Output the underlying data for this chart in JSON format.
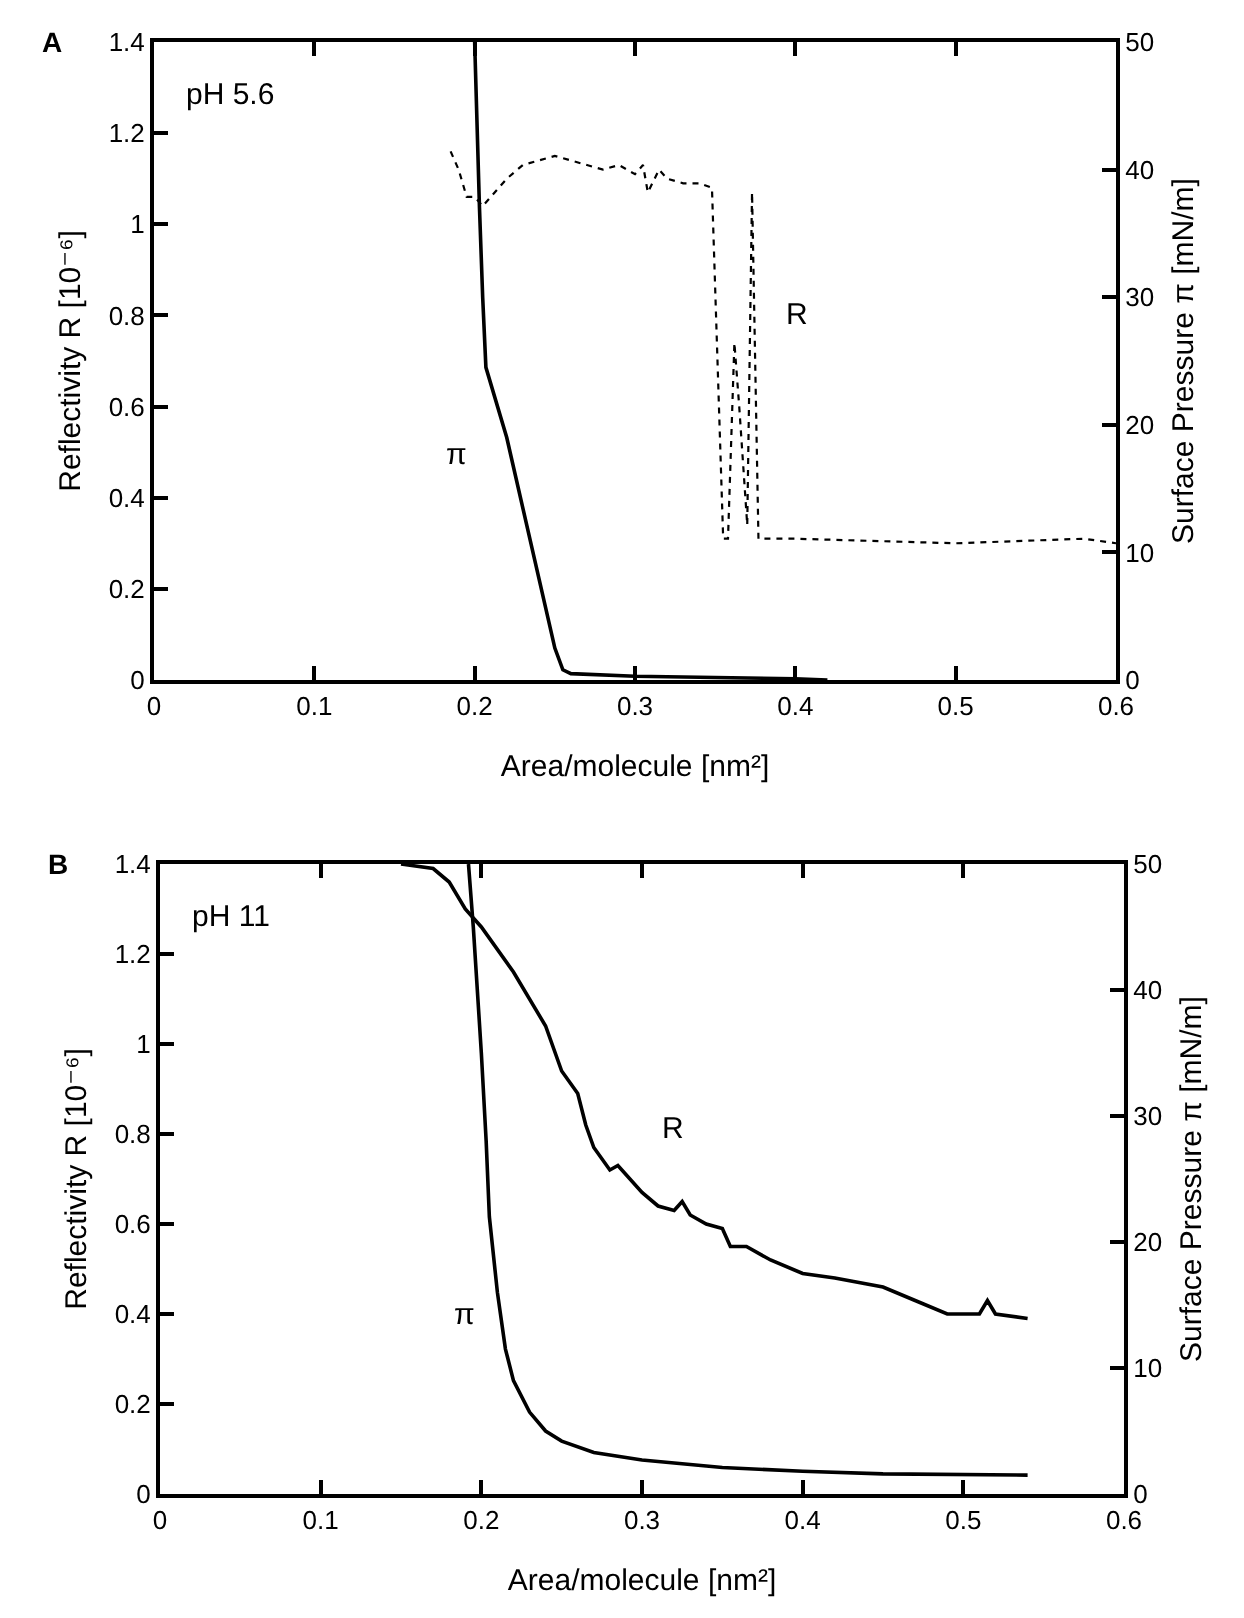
{
  "chart_data": [
    {
      "type": "line",
      "xlabel": "Area/molecule [nm²]",
      "ylabel": "Reflectivity R [10⁻⁶]",
      "y2label": "Surface Pressure π [mN/m]",
      "xlim": [
        0,
        0.6
      ],
      "xticks": [
        0,
        0.1,
        0.2,
        0.3,
        0.4,
        0.5,
        0.6
      ],
      "ylim": [
        0,
        1.4
      ],
      "yticks": [
        0,
        0.2,
        0.4,
        0.6,
        0.8,
        1,
        1.2,
        1.4
      ],
      "y2lim": [
        0,
        50
      ],
      "y2ticks": [
        0,
        10,
        20,
        30,
        40,
        50
      ],
      "grid": false,
      "legend": false,
      "marker": "none",
      "annotations": [
        "A",
        "pH 5.6"
      ],
      "series": [
        {
          "name": "R",
          "color": "#000000",
          "line_style": "dotted",
          "x": [
            0.185,
            0.19,
            0.195,
            0.2,
            0.205,
            0.21,
            0.22,
            0.23,
            0.24,
            0.25,
            0.26,
            0.27,
            0.28,
            0.29,
            0.3,
            0.305,
            0.308,
            0.315,
            0.32,
            0.33,
            0.34,
            0.348,
            0.355,
            0.358,
            0.362,
            0.365,
            0.37,
            0.373,
            0.377,
            0.4,
            0.5,
            0.58,
            0.6
          ],
          "values": [
            1.16,
            1.12,
            1.06,
            1.06,
            1.04,
            1.06,
            1.1,
            1.13,
            1.14,
            1.15,
            1.14,
            1.13,
            1.12,
            1.13,
            1.11,
            1.13,
            1.07,
            1.12,
            1.1,
            1.09,
            1.09,
            1.08,
            0.31,
            0.31,
            0.74,
            0.6,
            0.34,
            1.07,
            0.31,
            0.31,
            0.3,
            0.31,
            0.3
          ]
        },
        {
          "name": "π",
          "color": "#000000",
          "line_style": "solid",
          "axis": "y2",
          "x": [
            0.2,
            0.203,
            0.205,
            0.207,
            0.22,
            0.24,
            0.25,
            0.255,
            0.26,
            0.3,
            0.35,
            0.4,
            0.42
          ],
          "values": [
            50,
            37,
            30,
            24.5,
            19,
            8,
            2.5,
            0.8,
            0.5,
            0.3,
            0.2,
            0.1,
            0
          ]
        }
      ]
    },
    {
      "type": "line",
      "xlabel": "Area/molecule [nm²]",
      "ylabel": "Reflectivity R [10⁻⁶]",
      "y2label": "Surface Pressure π [mN/m]",
      "xlim": [
        0,
        0.6
      ],
      "xticks": [
        0,
        0.1,
        0.2,
        0.3,
        0.4,
        0.5,
        0.6
      ],
      "ylim": [
        0,
        1.4
      ],
      "yticks": [
        0,
        0.2,
        0.4,
        0.6,
        0.8,
        1,
        1.2,
        1.4
      ],
      "y2lim": [
        0,
        50
      ],
      "y2ticks": [
        0,
        10,
        20,
        30,
        40,
        50
      ],
      "grid": false,
      "legend": false,
      "marker": "none",
      "annotations": [
        "B",
        "pH 11"
      ],
      "series": [
        {
          "name": "R",
          "color": "#000000",
          "line_style": "solid",
          "x": [
            0.15,
            0.17,
            0.18,
            0.19,
            0.2,
            0.22,
            0.24,
            0.25,
            0.26,
            0.265,
            0.27,
            0.28,
            0.285,
            0.3,
            0.31,
            0.32,
            0.325,
            0.33,
            0.34,
            0.35,
            0.355,
            0.365,
            0.38,
            0.4,
            0.42,
            0.45,
            0.47,
            0.49,
            0.51,
            0.515,
            0.52,
            0.54
          ],
          "values": [
            1.4,
            1.39,
            1.36,
            1.3,
            1.26,
            1.16,
            1.04,
            0.94,
            0.89,
            0.82,
            0.77,
            0.72,
            0.73,
            0.67,
            0.64,
            0.63,
            0.65,
            0.62,
            0.6,
            0.59,
            0.55,
            0.55,
            0.52,
            0.49,
            0.48,
            0.46,
            0.43,
            0.4,
            0.4,
            0.43,
            0.4,
            0.39
          ]
        },
        {
          "name": "π",
          "color": "#000000",
          "line_style": "solid",
          "axis": "y2",
          "x": [
            0.192,
            0.195,
            0.2,
            0.203,
            0.205,
            0.21,
            0.215,
            0.22,
            0.23,
            0.24,
            0.25,
            0.27,
            0.3,
            0.35,
            0.4,
            0.45,
            0.54
          ],
          "values": [
            50,
            45,
            35,
            28,
            22,
            16,
            11.5,
            9,
            6.5,
            5,
            4.2,
            3.3,
            2.7,
            2.1,
            1.8,
            1.6,
            1.5
          ]
        }
      ]
    }
  ]
}
